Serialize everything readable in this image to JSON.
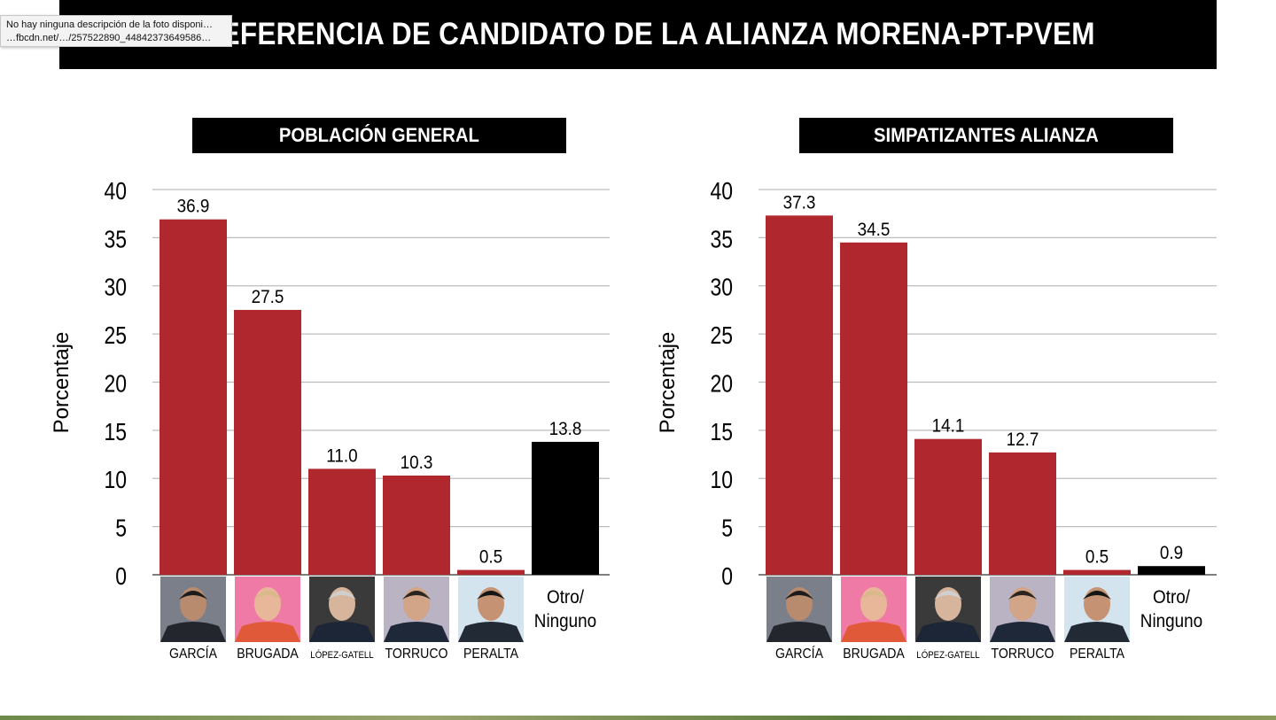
{
  "title": "PREFERENCIA DE CANDIDATO DE LA ALIANZA MORENA-PT-PVEM",
  "tooltip": {
    "line1": "No hay ninguna descripción de la foto disponi…",
    "line2": "…fbcdn.net/…/257522890_44842373649586…"
  },
  "colors": {
    "bar": "#b0272d",
    "other_bar": "#000000",
    "grid": "#bdbdbd"
  },
  "chart_data": [
    {
      "type": "bar",
      "title": "POBLACIÓN GENERAL",
      "ylabel": "Porcentaje",
      "ylim": [
        0,
        40
      ],
      "yticks": [
        0,
        5,
        10,
        15,
        20,
        25,
        30,
        35,
        40
      ],
      "categories": [
        "GARCÍA",
        "BRUGADA",
        "LÓPEZ-GATELL",
        "TORRUCO",
        "PERALTA",
        "Otro/ Ninguno"
      ],
      "values": [
        36.9,
        27.5,
        11.0,
        10.3,
        0.5,
        13.8
      ],
      "value_labels": [
        "36.9",
        "27.5",
        "11.0",
        "10.3",
        "0.5",
        "13.8"
      ],
      "grid": true
    },
    {
      "type": "bar",
      "title": "SIMPATIZANTES ALIANZA",
      "ylabel": "Porcentaje",
      "ylim": [
        0,
        40
      ],
      "yticks": [
        0,
        5,
        10,
        15,
        20,
        25,
        30,
        35,
        40
      ],
      "categories": [
        "GARCÍA",
        "BRUGADA",
        "LÓPEZ-GATELL",
        "TORRUCO",
        "PERALTA",
        "Otro/ Ninguno"
      ],
      "values": [
        37.3,
        34.5,
        14.1,
        12.7,
        0.5,
        0.9
      ],
      "value_labels": [
        "37.3",
        "34.5",
        "14.1",
        "12.7",
        "0.5",
        "0.9"
      ],
      "grid": true
    }
  ],
  "other_label": {
    "line1": "Otro/",
    "line2": "Ninguno"
  }
}
